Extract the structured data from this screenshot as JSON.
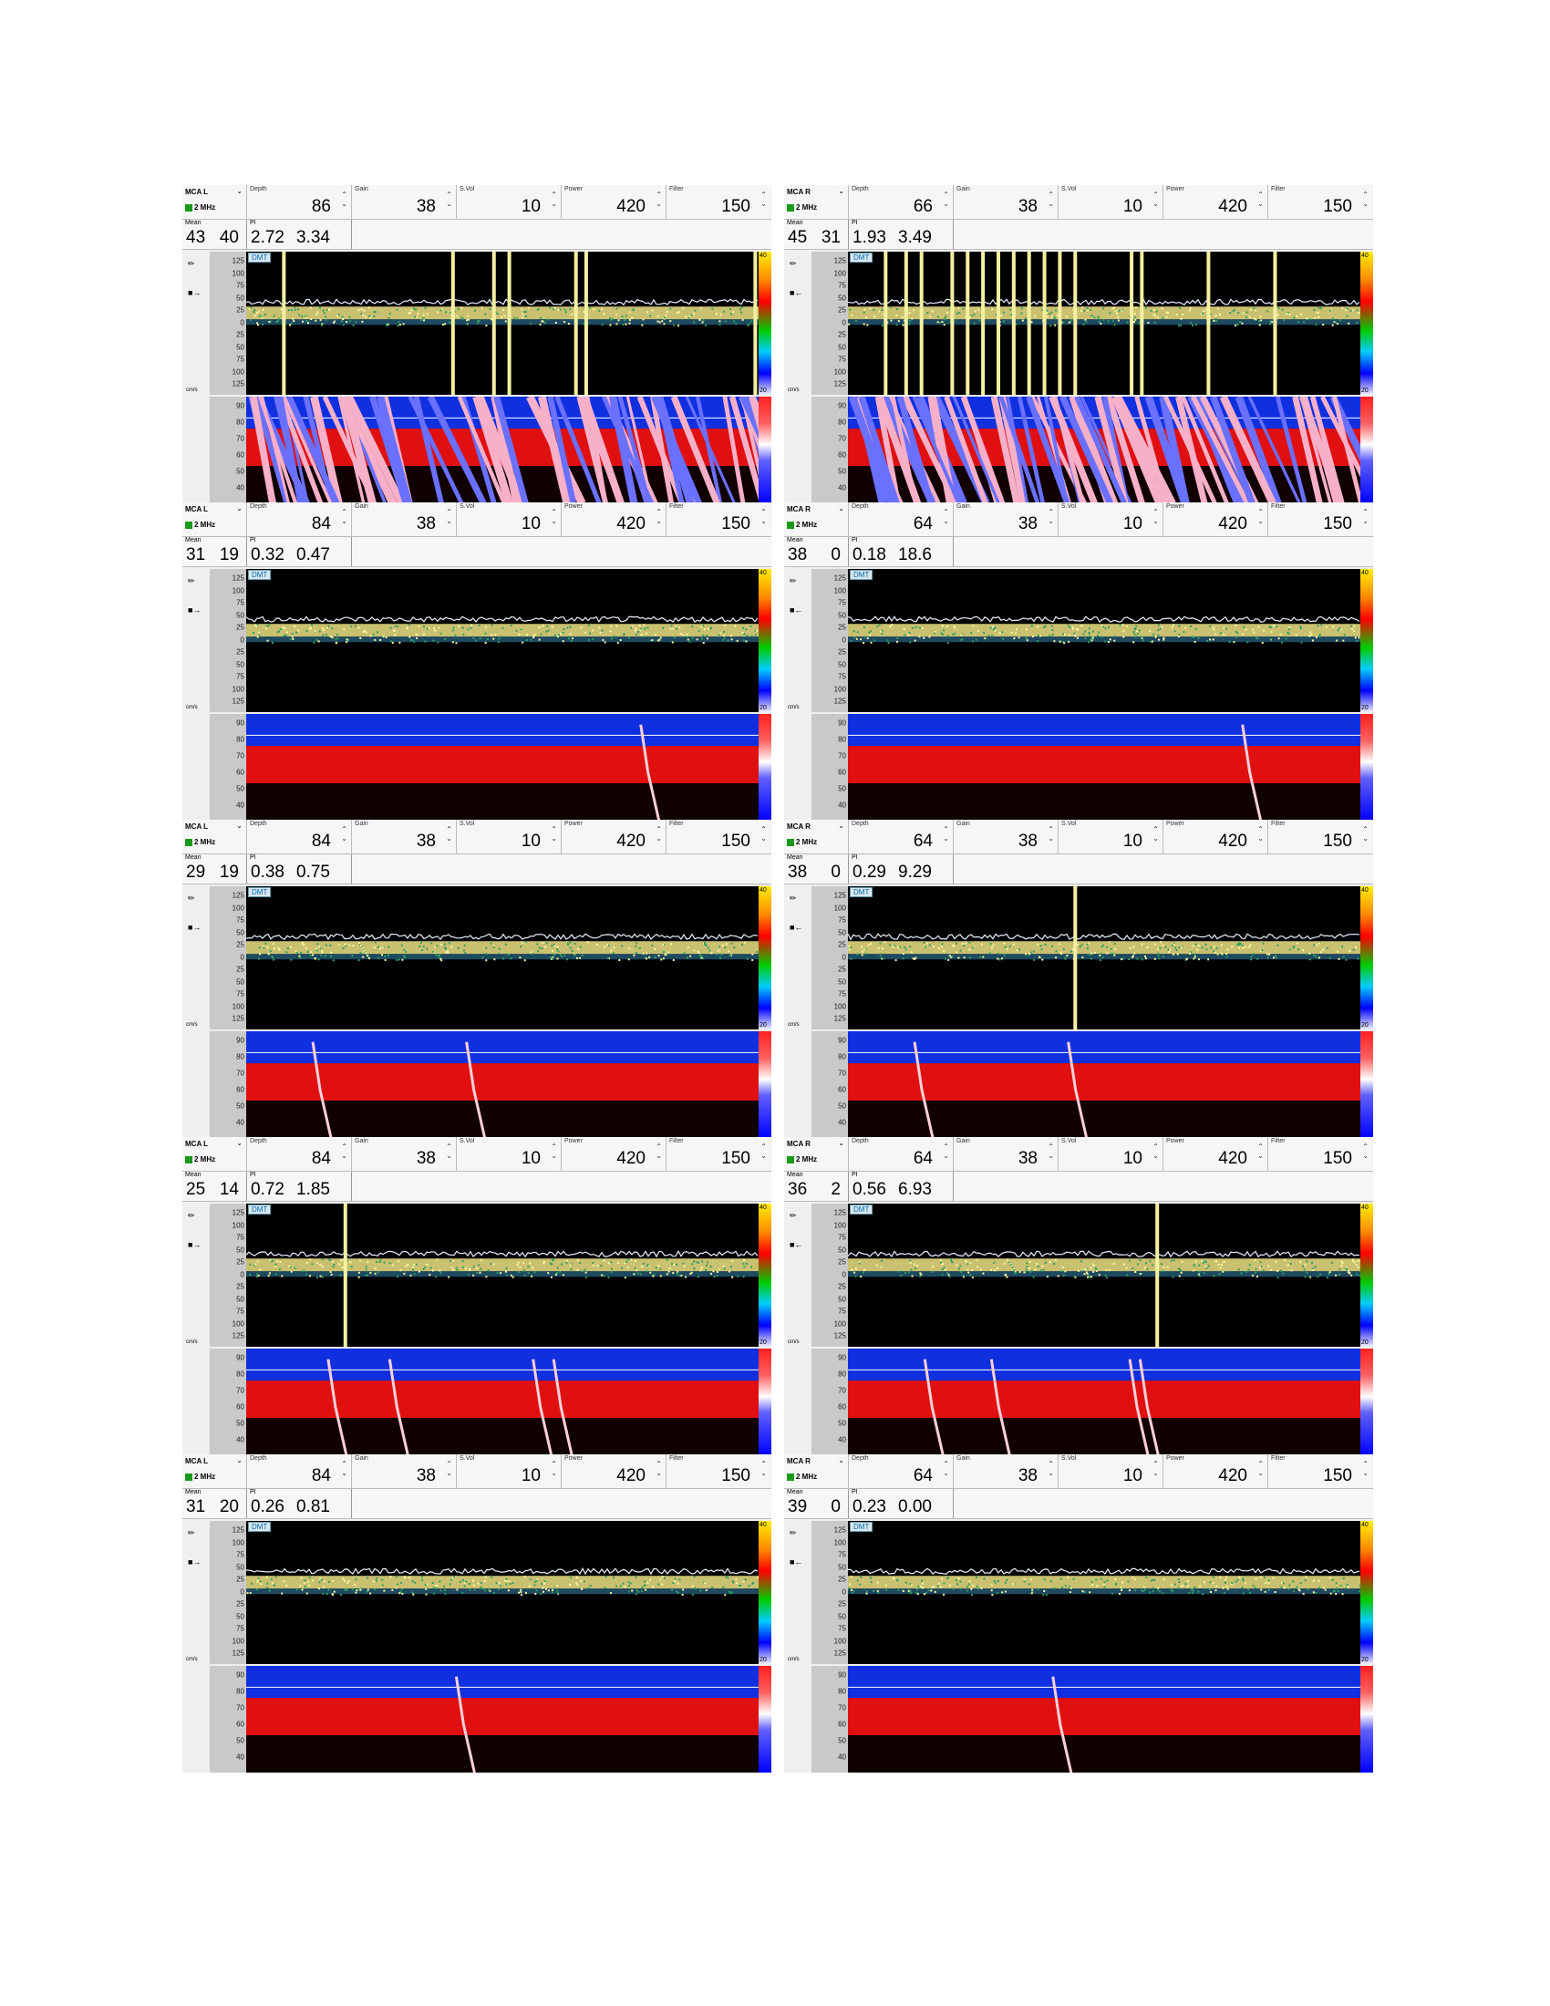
{
  "labels": {
    "depth": "Depth",
    "gain": "Gain",
    "svol": "S.Vol",
    "power": "Power",
    "filter": "Filter",
    "mean": "Mean",
    "pi": "PI",
    "dmt": "DMT",
    "unit": "cm/s",
    "freq": "2 MHz"
  },
  "spectral_ticks": [
    "125",
    "100",
    "75",
    "50",
    "25",
    "0",
    "25",
    "50",
    "75",
    "100",
    "125"
  ],
  "mmode_ticks": [
    "90",
    "80",
    "70",
    "60",
    "50",
    "40"
  ],
  "colorbar": {
    "top": "40",
    "bottom": "20"
  },
  "colors": {
    "mmode_blue": "#1030e0",
    "mmode_red": "#e01010",
    "envelope": "#f0f0a0",
    "channel_indicator": "#1a9a1a"
  },
  "panels": [
    {
      "channel": "MCA L",
      "depth": "86",
      "gain": "38",
      "svol": "10",
      "power": "420",
      "filter": "150",
      "mean1": "43",
      "mean2": "40",
      "pi1": "2.72",
      "pi2": "3.34",
      "side": "left"
    },
    {
      "channel": "MCA R",
      "depth": "66",
      "gain": "38",
      "svol": "10",
      "power": "420",
      "filter": "150",
      "mean1": "45",
      "mean2": "31",
      "pi1": "1.93",
      "pi2": "3.49",
      "side": "right"
    },
    {
      "channel": "MCA L",
      "depth": "84",
      "gain": "38",
      "svol": "10",
      "power": "420",
      "filter": "150",
      "mean1": "31",
      "mean2": "19",
      "pi1": "0.32",
      "pi2": "0.47",
      "side": "left"
    },
    {
      "channel": "MCA R",
      "depth": "64",
      "gain": "38",
      "svol": "10",
      "power": "420",
      "filter": "150",
      "mean1": "38",
      "mean2": "0",
      "pi1": "0.18",
      "pi2": "18.6",
      "side": "right"
    },
    {
      "channel": "MCA L",
      "depth": "84",
      "gain": "38",
      "svol": "10",
      "power": "420",
      "filter": "150",
      "mean1": "29",
      "mean2": "19",
      "pi1": "0.38",
      "pi2": "0.75",
      "side": "left"
    },
    {
      "channel": "MCA R",
      "depth": "64",
      "gain": "38",
      "svol": "10",
      "power": "420",
      "filter": "150",
      "mean1": "38",
      "mean2": "0",
      "pi1": "0.29",
      "pi2": "9.29",
      "side": "right"
    },
    {
      "channel": "MCA L",
      "depth": "84",
      "gain": "38",
      "svol": "10",
      "power": "420",
      "filter": "150",
      "mean1": "25",
      "mean2": "14",
      "pi1": "0.72",
      "pi2": "1.85",
      "side": "left"
    },
    {
      "channel": "MCA R",
      "depth": "64",
      "gain": "38",
      "svol": "10",
      "power": "420",
      "filter": "150",
      "mean1": "36",
      "mean2": "2",
      "pi1": "0.56",
      "pi2": "6.93",
      "side": "right"
    },
    {
      "channel": "MCA L",
      "depth": "84",
      "gain": "38",
      "svol": "10",
      "power": "420",
      "filter": "150",
      "mean1": "31",
      "mean2": "20",
      "pi1": "0.26",
      "pi2": "0.81",
      "side": "left"
    },
    {
      "channel": "MCA R",
      "depth": "64",
      "gain": "38",
      "svol": "10",
      "power": "420",
      "filter": "150",
      "mean1": "39",
      "mean2": "0",
      "pi1": "0.23",
      "pi2": "0.00",
      "side": "right"
    }
  ]
}
